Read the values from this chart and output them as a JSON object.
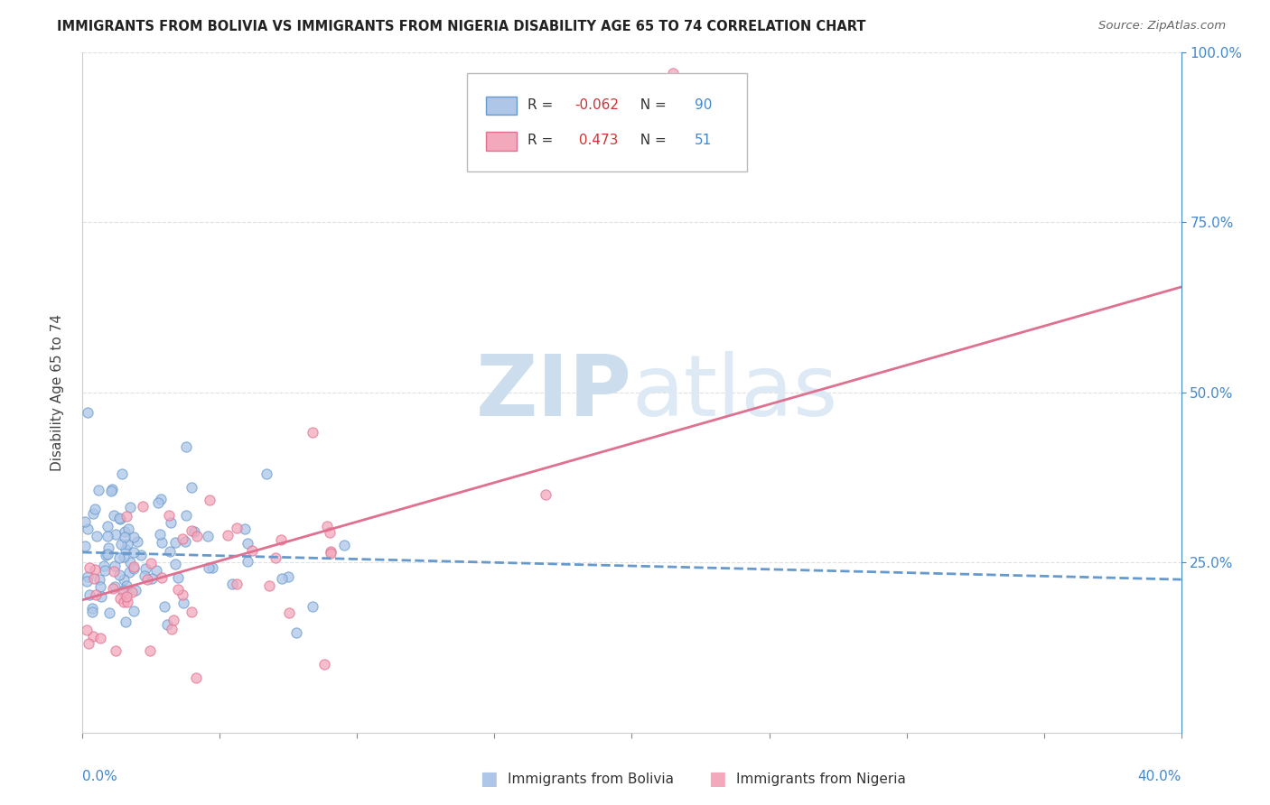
{
  "title": "IMMIGRANTS FROM BOLIVIA VS IMMIGRANTS FROM NIGERIA DISABILITY AGE 65 TO 74 CORRELATION CHART",
  "source": "Source: ZipAtlas.com",
  "ylabel": "Disability Age 65 to 74",
  "right_yticks": [
    "100.0%",
    "75.0%",
    "50.0%",
    "25.0%"
  ],
  "right_ytick_vals": [
    1.0,
    0.75,
    0.5,
    0.25
  ],
  "bolivia_color": "#aec6e8",
  "nigeria_color": "#f4a8bc",
  "bolivia_edge_color": "#6699cc",
  "nigeria_edge_color": "#e07090",
  "bolivia_line_color": "#6699cc",
  "nigeria_line_color": "#e07090",
  "bolivia_R": -0.062,
  "bolivia_N": 90,
  "nigeria_R": 0.473,
  "nigeria_N": 51,
  "xlim": [
    0.0,
    0.4
  ],
  "ylim": [
    0.0,
    1.0
  ],
  "bolivia_trend_x": [
    0.0,
    0.4
  ],
  "bolivia_trend_y": [
    0.265,
    0.225
  ],
  "nigeria_trend_x": [
    0.0,
    0.4
  ],
  "nigeria_trend_y": [
    0.195,
    0.655
  ],
  "grid_color": "#e0e0e0",
  "watermark_zip_color": "#c8dff0",
  "watermark_atlas_color": "#c8dff0"
}
